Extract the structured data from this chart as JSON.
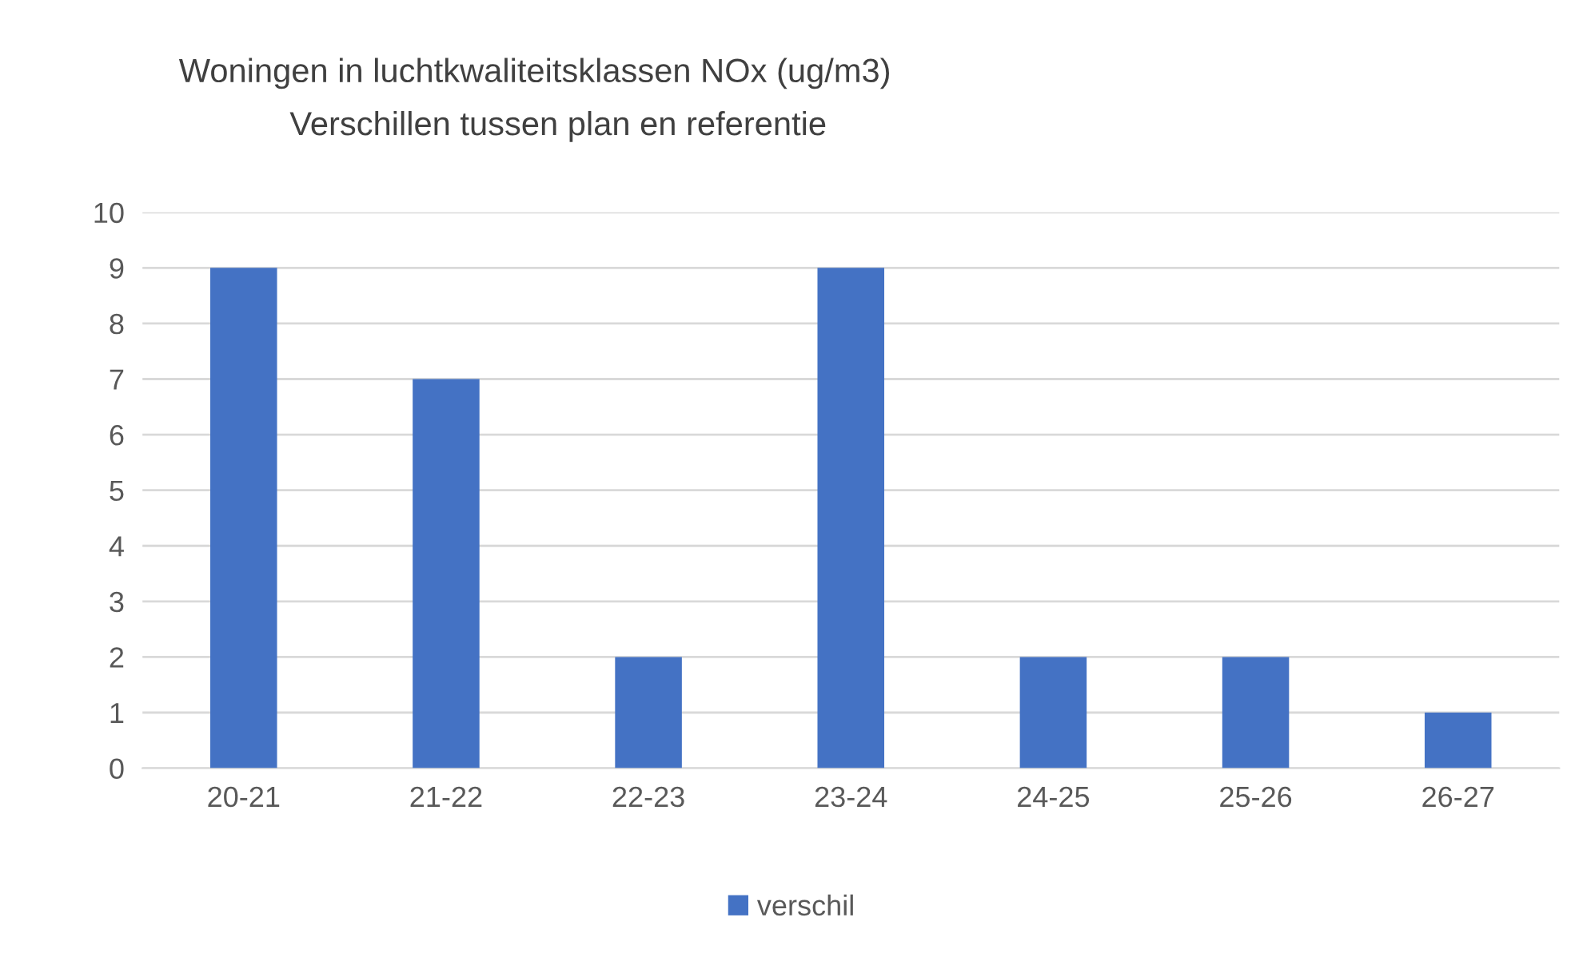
{
  "chart_data": {
    "type": "bar",
    "title": "Woningen in luchtkwaliteitsklassen NOx (ug/m3)",
    "subtitle": "Verschillen tussen plan en referentie",
    "categories": [
      "20-21",
      "21-22",
      "22-23",
      "23-24",
      "24-25",
      "25-26",
      "26-27"
    ],
    "series": [
      {
        "name": "verschil",
        "color": "#4472c4",
        "values": [
          9,
          7,
          2,
          9,
          2,
          2,
          1
        ]
      }
    ],
    "ylim": [
      0,
      10
    ],
    "yticks": [
      0,
      1,
      2,
      3,
      4,
      5,
      6,
      7,
      8,
      9,
      10
    ],
    "grid": "y",
    "legend": "bottom"
  }
}
